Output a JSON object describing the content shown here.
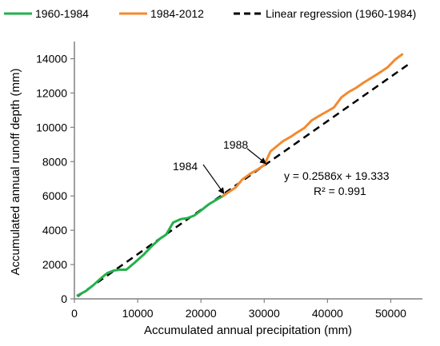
{
  "chart_data": {
    "type": "line",
    "xlabel": "Accumulated annual precipitation (mm)",
    "ylabel": "Accumulated annual runoff depth (mm)",
    "xlim": [
      0,
      55000
    ],
    "ylim": [
      0,
      15000
    ],
    "xticks": [
      0,
      10000,
      20000,
      30000,
      40000,
      50000
    ],
    "yticks": [
      0,
      2000,
      4000,
      6000,
      8000,
      10000,
      12000,
      14000
    ],
    "grid": false,
    "legend_position": "top",
    "colors": {
      "series_1960_1984": "#22b14c",
      "series_1984_2012": "#f28a30",
      "regression": "#000000"
    },
    "series": [
      {
        "name": "1960-1984",
        "style": "solid",
        "x": [
          500,
          1800,
          3000,
          4200,
          5200,
          6200,
          7200,
          8200,
          9500,
          11000,
          12300,
          13500,
          14500,
          15600,
          16800,
          17800,
          18900,
          20000,
          21200,
          22300,
          23500
        ],
        "y": [
          200,
          450,
          800,
          1200,
          1500,
          1650,
          1700,
          1700,
          2100,
          2600,
          3100,
          3500,
          3750,
          4450,
          4650,
          4700,
          4850,
          5150,
          5500,
          5750,
          6000
        ]
      },
      {
        "name": "1984-2012",
        "style": "solid",
        "x": [
          23500,
          24500,
          25500,
          26500,
          27800,
          29000,
          30000,
          31000,
          32000,
          33000,
          34200,
          35200,
          36300,
          37500,
          38600,
          39800,
          41000,
          42200,
          43300,
          44500,
          45700,
          47000,
          48300,
          49500,
          50700,
          51800
        ],
        "y": [
          6000,
          6250,
          6500,
          6950,
          7300,
          7550,
          7800,
          8600,
          8900,
          9200,
          9450,
          9700,
          9950,
          10400,
          10650,
          10900,
          11150,
          11750,
          12050,
          12300,
          12600,
          12900,
          13200,
          13500,
          13950,
          14250
        ]
      },
      {
        "name": "Linear regression (1960-1984)",
        "style": "dashed",
        "x": [
          500,
          53000
        ],
        "y": [
          148.6,
          13725.1
        ]
      }
    ],
    "annotations": [
      {
        "text": "1984",
        "x": 24000,
        "y": 6000
      },
      {
        "text": "1988",
        "x": 30500,
        "y": 7800
      },
      {
        "text": "y = 0.2586x + 19.333"
      },
      {
        "text": "R² = 0.991"
      }
    ]
  }
}
